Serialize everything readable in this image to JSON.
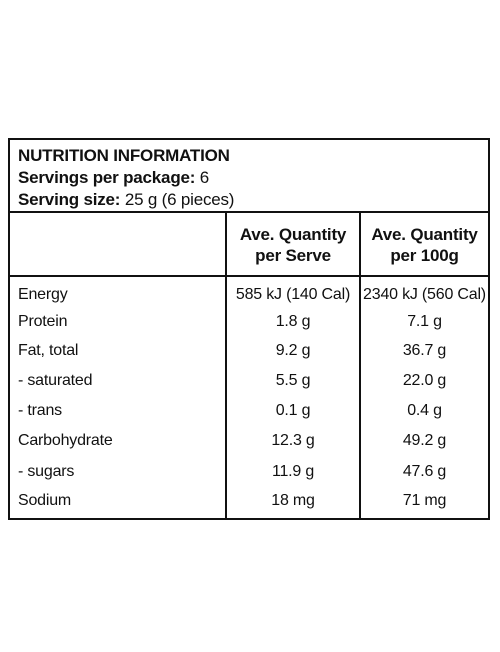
{
  "panel": {
    "title": "NUTRITION INFORMATION",
    "servings_label": "Servings per package:",
    "servings_value": "6",
    "serving_size_label": "Serving size:",
    "serving_size_value": "25 g (6 pieces)"
  },
  "columns": {
    "per_serve": "Ave. Quantity per Serve",
    "per_100g": "Ave. Quantity per 100g"
  },
  "rows": [
    {
      "name": "Energy",
      "per_serve": "585 kJ (140 Cal)",
      "per_100g": "2340 kJ (560 Cal)"
    },
    {
      "name": "Protein",
      "per_serve": "1.8 g",
      "per_100g": "7.1 g"
    },
    {
      "name": "Fat, total",
      "per_serve": "9.2 g",
      "per_100g": "36.7 g"
    },
    {
      "name": "- saturated",
      "per_serve": "5.5 g",
      "per_100g": "22.0 g"
    },
    {
      "name": "- trans",
      "per_serve": "0.1 g",
      "per_100g": "0.4 g"
    },
    {
      "name": "Carbohydrate",
      "per_serve": "12.3 g",
      "per_100g": "49.2 g"
    },
    {
      "name": "- sugars",
      "per_serve": "11.9 g",
      "per_100g": "47.6 g"
    },
    {
      "name": "Sodium",
      "per_serve": "18 mg",
      "per_100g": "71 mg"
    }
  ]
}
